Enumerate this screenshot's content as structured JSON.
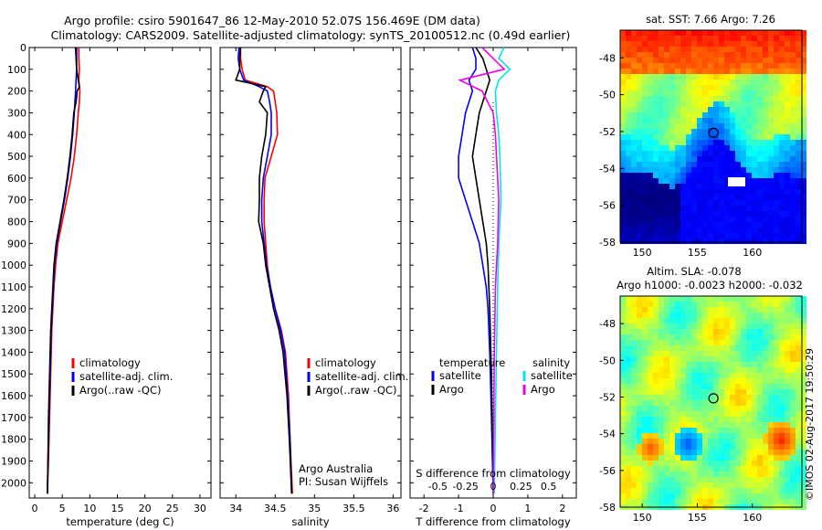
{
  "header": {
    "line1": "Argo profile: csiro 5901647_86 12-May-2010 52.07S 156.469E (DM data)",
    "line2": "Climatology: CARS2009. Satellite-adjusted climatology: synTS_20100512.nc (0.49d earlier)"
  },
  "credit": "©IMOS 02-Aug-2017 19:50:29",
  "colors": {
    "climatology": "#ff0000",
    "satellite": "#0000ff",
    "argo": "#000000",
    "sat_salinity": "#00e5ee",
    "argo_salinity": "#ee00ee"
  },
  "chart_data": [
    {
      "id": "temperature",
      "type": "line",
      "xlabel": "temperature (deg C)",
      "ylabel": "",
      "xlim": [
        -1,
        32
      ],
      "ylim": [
        2070,
        0
      ],
      "xticks": [
        0,
        5,
        10,
        15,
        20,
        25,
        30
      ],
      "yticks": [
        0,
        100,
        200,
        300,
        400,
        500,
        600,
        700,
        800,
        900,
        1000,
        1100,
        1200,
        1300,
        1400,
        1500,
        1600,
        1700,
        1800,
        1900,
        2000
      ],
      "legend": [
        "climatology",
        "satellite-adj. clim.",
        "Argo(..raw -QC)"
      ],
      "series": [
        {
          "name": "climatology",
          "color": "#ff0000",
          "points": [
            [
              8.0,
              0
            ],
            [
              8.0,
              50
            ],
            [
              8.1,
              100
            ],
            [
              8.0,
              150
            ],
            [
              8.2,
              200
            ],
            [
              8.1,
              250
            ],
            [
              7.9,
              300
            ],
            [
              7.6,
              400
            ],
            [
              7.2,
              500
            ],
            [
              6.6,
              600
            ],
            [
              5.8,
              700
            ],
            [
              5.0,
              800
            ],
            [
              4.2,
              900
            ],
            [
              3.8,
              1000
            ],
            [
              3.5,
              1100
            ],
            [
              3.3,
              1200
            ],
            [
              3.1,
              1300
            ],
            [
              2.9,
              1500
            ],
            [
              2.7,
              1700
            ],
            [
              2.5,
              1900
            ],
            [
              2.3,
              2050
            ]
          ]
        },
        {
          "name": "satellite-adj. clim.",
          "color": "#0000ff",
          "points": [
            [
              7.6,
              0
            ],
            [
              7.6,
              50
            ],
            [
              7.6,
              100
            ],
            [
              7.5,
              150
            ],
            [
              7.4,
              200
            ],
            [
              7.2,
              300
            ],
            [
              6.9,
              400
            ],
            [
              6.5,
              500
            ],
            [
              6.0,
              600
            ],
            [
              5.4,
              700
            ],
            [
              4.7,
              800
            ],
            [
              4.0,
              900
            ],
            [
              3.6,
              1000
            ],
            [
              3.4,
              1100
            ],
            [
              3.2,
              1200
            ],
            [
              3.0,
              1300
            ],
            [
              2.8,
              1500
            ],
            [
              2.6,
              1700
            ],
            [
              2.4,
              1900
            ],
            [
              2.3,
              2050
            ]
          ]
        },
        {
          "name": "Argo(..raw -QC)",
          "color": "#000000",
          "points": [
            [
              7.4,
              0
            ],
            [
              7.5,
              50
            ],
            [
              7.6,
              100
            ],
            [
              7.9,
              150
            ],
            [
              8.1,
              180
            ],
            [
              7.7,
              200
            ],
            [
              7.5,
              250
            ],
            [
              7.1,
              300
            ],
            [
              6.8,
              400
            ],
            [
              6.4,
              500
            ],
            [
              5.9,
              600
            ],
            [
              5.3,
              700
            ],
            [
              4.6,
              800
            ],
            [
              3.9,
              900
            ],
            [
              3.5,
              1000
            ],
            [
              3.3,
              1100
            ],
            [
              3.1,
              1200
            ],
            [
              2.9,
              1300
            ],
            [
              2.7,
              1500
            ],
            [
              2.5,
              1700
            ],
            [
              2.4,
              1900
            ],
            [
              2.3,
              2050
            ]
          ]
        }
      ]
    },
    {
      "id": "salinity",
      "type": "line",
      "xlabel": "salinity",
      "ylabel": "",
      "xlim": [
        33.8,
        36.1
      ],
      "ylim": [
        2070,
        0
      ],
      "xticks": [
        34,
        34.5,
        35,
        35.5,
        36
      ],
      "xticklabels": [
        "34",
        "34.5",
        "35",
        "35.5",
        "36"
      ],
      "legend": [
        "climatology",
        "satellite-adj. clim.",
        "Argo(..raw -QC)"
      ],
      "annotation": [
        "Argo Australia",
        "PI: Susan Wijffels"
      ],
      "series": [
        {
          "name": "climatology",
          "color": "#ff0000",
          "points": [
            [
              34.06,
              0
            ],
            [
              34.06,
              50
            ],
            [
              34.08,
              100
            ],
            [
              34.12,
              150
            ],
            [
              34.4,
              180
            ],
            [
              34.48,
              200
            ],
            [
              34.5,
              250
            ],
            [
              34.52,
              300
            ],
            [
              34.53,
              400
            ],
            [
              34.45,
              500
            ],
            [
              34.37,
              600
            ],
            [
              34.36,
              700
            ],
            [
              34.36,
              800
            ],
            [
              34.38,
              900
            ],
            [
              34.4,
              1000
            ],
            [
              34.44,
              1100
            ],
            [
              34.5,
              1200
            ],
            [
              34.58,
              1300
            ],
            [
              34.63,
              1400
            ],
            [
              34.67,
              1600
            ],
            [
              34.69,
              1800
            ],
            [
              34.72,
              2050
            ]
          ]
        },
        {
          "name": "satellite-adj. clim.",
          "color": "#0000ff",
          "points": [
            [
              34.04,
              0
            ],
            [
              34.03,
              50
            ],
            [
              34.05,
              100
            ],
            [
              34.1,
              150
            ],
            [
              34.3,
              180
            ],
            [
              34.4,
              200
            ],
            [
              34.43,
              250
            ],
            [
              34.45,
              300
            ],
            [
              34.45,
              400
            ],
            [
              34.4,
              500
            ],
            [
              34.35,
              600
            ],
            [
              34.33,
              700
            ],
            [
              34.33,
              800
            ],
            [
              34.36,
              900
            ],
            [
              34.39,
              1000
            ],
            [
              34.44,
              1100
            ],
            [
              34.5,
              1200
            ],
            [
              34.57,
              1300
            ],
            [
              34.62,
              1400
            ],
            [
              34.66,
              1600
            ],
            [
              34.69,
              1800
            ],
            [
              34.71,
              2050
            ]
          ]
        },
        {
          "name": "Argo(..raw -QC)",
          "color": "#000000",
          "points": [
            [
              34.06,
              0
            ],
            [
              34.05,
              50
            ],
            [
              34.05,
              100
            ],
            [
              34.0,
              150
            ],
            [
              34.2,
              165
            ],
            [
              34.38,
              180
            ],
            [
              34.35,
              200
            ],
            [
              34.3,
              250
            ],
            [
              34.4,
              300
            ],
            [
              34.38,
              400
            ],
            [
              34.33,
              500
            ],
            [
              34.3,
              600
            ],
            [
              34.3,
              700
            ],
            [
              34.29,
              800
            ],
            [
              34.35,
              900
            ],
            [
              34.38,
              1000
            ],
            [
              34.43,
              1100
            ],
            [
              34.48,
              1200
            ],
            [
              34.55,
              1300
            ],
            [
              34.6,
              1400
            ],
            [
              34.65,
              1600
            ],
            [
              34.68,
              1800
            ],
            [
              34.71,
              2050
            ]
          ]
        }
      ]
    },
    {
      "id": "differences",
      "type": "line",
      "xlabel": "T difference from climatology",
      "xlabel2": "S difference from climatology",
      "xlim": [
        -2.4,
        2.4
      ],
      "ylim": [
        2070,
        0
      ],
      "xticks": [
        -2,
        -1,
        0,
        1,
        2
      ],
      "xticks2": [
        -0.5,
        -0.25,
        0,
        0.25,
        0.5
      ],
      "xticklabels2": [
        "-0.5",
        "-0.25",
        "0",
        "0.25",
        "0.5"
      ],
      "legend_temperature": {
        "title": "temperature",
        "items": [
          "satellite",
          "Argo"
        ]
      },
      "legend_salinity": {
        "title": "salinity",
        "items": [
          "satellite",
          "Argo"
        ]
      },
      "series": [
        {
          "name": "temperature satellite",
          "color": "#0000ff",
          "points": [
            [
              -0.6,
              0
            ],
            [
              -0.5,
              50
            ],
            [
              -0.5,
              100
            ],
            [
              -0.7,
              150
            ],
            [
              -0.6,
              200
            ],
            [
              -0.8,
              300
            ],
            [
              -0.9,
              400
            ],
            [
              -1.0,
              500
            ],
            [
              -1.0,
              600
            ],
            [
              -0.8,
              700
            ],
            [
              -0.6,
              800
            ],
            [
              -0.4,
              900
            ],
            [
              -0.3,
              1000
            ],
            [
              -0.2,
              1100
            ],
            [
              -0.15,
              1200
            ],
            [
              -0.1,
              1400
            ],
            [
              -0.05,
              1700
            ],
            [
              0,
              2050
            ]
          ]
        },
        {
          "name": "temperature Argo",
          "color": "#000000",
          "points": [
            [
              -0.5,
              0
            ],
            [
              -0.3,
              50
            ],
            [
              -0.2,
              100
            ],
            [
              -0.1,
              150
            ],
            [
              -0.2,
              200
            ],
            [
              -0.4,
              300
            ],
            [
              -0.5,
              400
            ],
            [
              -0.6,
              500
            ],
            [
              -0.5,
              600
            ],
            [
              -0.4,
              700
            ],
            [
              -0.3,
              800
            ],
            [
              -0.2,
              900
            ],
            [
              -0.15,
              1000
            ],
            [
              -0.1,
              1200
            ],
            [
              -0.05,
              1500
            ],
            [
              0,
              2050
            ]
          ]
        },
        {
          "name": "salinity satellite",
          "color": "#00e5ee",
          "points": [
            [
              0.1,
              0
            ],
            [
              0.05,
              50
            ],
            [
              0.15,
              100
            ],
            [
              0.05,
              150
            ],
            [
              0.02,
              200
            ],
            [
              0.03,
              300
            ],
            [
              0.05,
              400
            ],
            [
              0.06,
              500
            ],
            [
              0.07,
              700
            ],
            [
              0.05,
              900
            ],
            [
              0.04,
              1100
            ],
            [
              0.03,
              1400
            ],
            [
              0.02,
              1700
            ],
            [
              0.01,
              2050
            ]
          ]
        },
        {
          "name": "salinity Argo",
          "color": "#ee00ee",
          "points": [
            [
              -0.1,
              0
            ],
            [
              0,
              50
            ],
            [
              0.1,
              100
            ],
            [
              -0.3,
              150
            ],
            [
              -0.1,
              200
            ],
            [
              0.0,
              300
            ],
            [
              0.02,
              400
            ],
            [
              0.03,
              500
            ],
            [
              0.05,
              700
            ],
            [
              0.04,
              900
            ],
            [
              0.02,
              1100
            ],
            [
              0.01,
              1400
            ],
            [
              0.0,
              2050
            ]
          ]
        }
      ]
    },
    {
      "id": "map-sst",
      "type": "heatmap",
      "title": "sat. SST: 7.66 Argo: 7.26",
      "xlim": [
        148,
        164.5
      ],
      "ylim": [
        -58,
        -46.5
      ],
      "xticks": [
        150,
        155,
        160
      ],
      "yticks": [
        -48,
        -50,
        -52,
        -54,
        -56,
        -58
      ],
      "marker": {
        "lon": 156.469,
        "lat": -52.07
      }
    },
    {
      "id": "map-sla",
      "type": "heatmap",
      "title": "Altim. SLA: -0.078",
      "subtitle": "Argo h1000: -0.0023 h2000: -0.032",
      "xlim": [
        148,
        164.5
      ],
      "ylim": [
        -58,
        -46.5
      ],
      "xticks": [
        150,
        155,
        160
      ],
      "yticks": [
        -48,
        -50,
        -52,
        -54,
        -56,
        -58
      ],
      "marker": {
        "lon": 156.469,
        "lat": -52.07
      }
    }
  ]
}
